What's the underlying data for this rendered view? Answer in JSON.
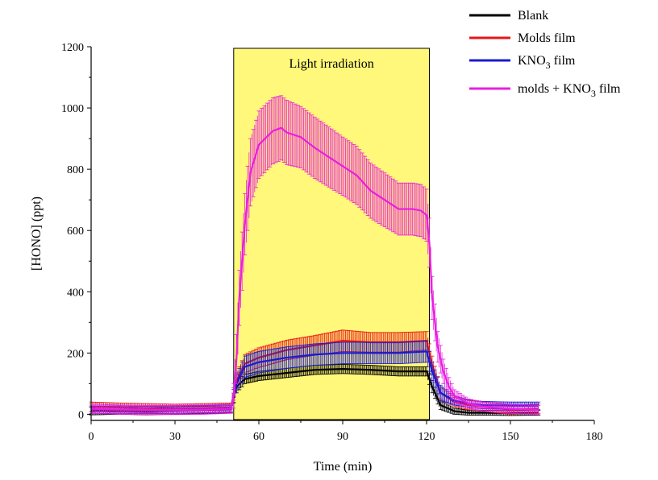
{
  "chart_data": {
    "type": "line",
    "title": "",
    "xlabel": "Time (min)",
    "ylabel": "[HONO] (ppt)",
    "xlim": [
      0,
      180
    ],
    "ylim": [
      -20,
      1200
    ],
    "xticks": [
      0,
      30,
      60,
      90,
      120,
      150,
      180
    ],
    "yticks": [
      0,
      200,
      400,
      600,
      800,
      1000,
      1200
    ],
    "grid": false,
    "legend_position": "top-right, outside plot",
    "annotations": [
      {
        "text": "Light irradiation",
        "x_range": [
          51,
          121
        ],
        "color": "#FFF87A"
      }
    ],
    "series": [
      {
        "name": "Blank",
        "color": "#000000",
        "x": [
          0,
          10,
          20,
          30,
          40,
          50,
          52,
          55,
          60,
          70,
          80,
          90,
          100,
          110,
          120,
          122,
          125,
          130,
          135,
          140,
          150,
          160
        ],
        "y": [
          10,
          12,
          10,
          12,
          14,
          16,
          90,
          115,
          125,
          135,
          145,
          148,
          145,
          140,
          140,
          90,
          30,
          10,
          5,
          5,
          4,
          5
        ],
        "err": [
          12,
          12,
          12,
          12,
          12,
          12,
          20,
          15,
          15,
          15,
          15,
          15,
          15,
          15,
          15,
          20,
          15,
          10,
          8,
          8,
          8,
          8
        ]
      },
      {
        "name": "Molds film",
        "color": "#E8141A",
        "x": [
          0,
          10,
          20,
          30,
          40,
          50,
          52,
          55,
          60,
          70,
          80,
          90,
          100,
          110,
          120,
          122,
          125,
          130,
          135,
          140,
          150,
          160
        ],
        "y": [
          25,
          22,
          20,
          18,
          20,
          22,
          110,
          165,
          185,
          210,
          225,
          240,
          235,
          235,
          240,
          160,
          70,
          40,
          30,
          25,
          15,
          18
        ],
        "err": [
          15,
          15,
          15,
          15,
          15,
          15,
          25,
          30,
          32,
          32,
          32,
          35,
          32,
          32,
          30,
          30,
          20,
          15,
          15,
          15,
          15,
          15
        ]
      },
      {
        "name": "KNO3 film",
        "color": "#1A1AD0",
        "x": [
          0,
          10,
          20,
          30,
          40,
          50,
          52,
          55,
          60,
          70,
          80,
          90,
          100,
          110,
          120,
          122,
          125,
          130,
          135,
          140,
          150,
          160
        ],
        "y": [
          15,
          15,
          14,
          15,
          16,
          20,
          100,
          155,
          170,
          185,
          195,
          200,
          200,
          200,
          205,
          140,
          70,
          45,
          35,
          30,
          28,
          28
        ],
        "err": [
          12,
          12,
          12,
          12,
          12,
          12,
          30,
          35,
          35,
          35,
          35,
          35,
          35,
          35,
          35,
          30,
          25,
          15,
          12,
          12,
          12,
          12
        ]
      },
      {
        "name": "molds + KNO3 film",
        "color": "#E81EE0",
        "x": [
          0,
          10,
          20,
          30,
          40,
          50,
          51,
          52,
          53,
          55,
          57,
          60,
          65,
          68,
          70,
          75,
          80,
          85,
          90,
          95,
          100,
          105,
          110,
          115,
          118,
          120,
          121,
          122,
          124,
          126,
          128,
          130,
          135,
          140,
          150,
          160
        ],
        "y": [
          18,
          15,
          14,
          14,
          15,
          18,
          60,
          180,
          380,
          620,
          790,
          880,
          925,
          935,
          920,
          905,
          870,
          840,
          810,
          780,
          730,
          700,
          670,
          670,
          665,
          650,
          560,
          380,
          220,
          140,
          90,
          60,
          35,
          25,
          18,
          14
        ],
        "err": [
          15,
          15,
          15,
          15,
          15,
          15,
          40,
          80,
          90,
          100,
          110,
          110,
          108,
          105,
          105,
          100,
          100,
          98,
          95,
          95,
          90,
          88,
          85,
          85,
          85,
          85,
          80,
          70,
          50,
          40,
          30,
          20,
          15,
          15,
          15,
          15
        ]
      }
    ]
  }
}
